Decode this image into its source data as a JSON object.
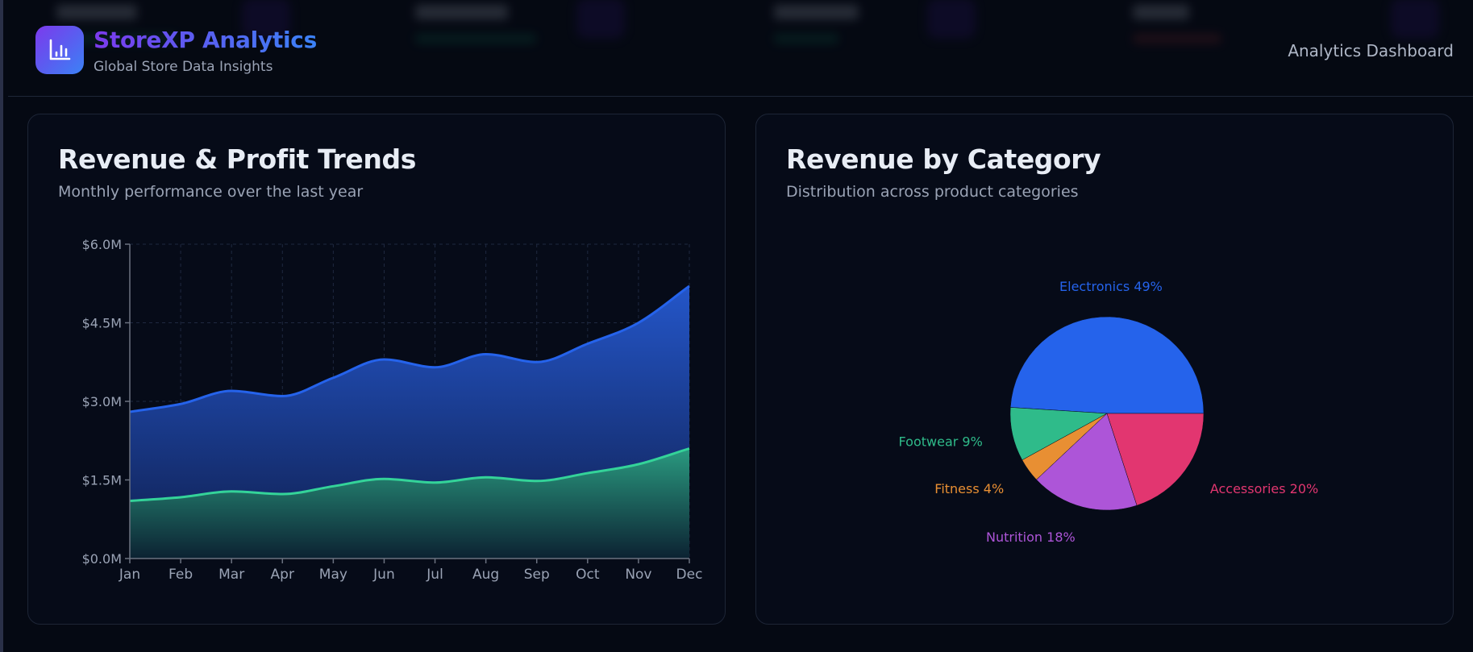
{
  "header": {
    "brand_title": "StoreXP Analytics",
    "brand_subtitle": "Global Store Data Insights",
    "logo_icon": "bar-chart-icon",
    "right_label": "Analytics Dashboard"
  },
  "stat_cards_blurred": [
    {
      "change_color": "#10b981"
    },
    {
      "change_color": "#10b981"
    },
    {
      "change_color": "#10b981"
    },
    {
      "change_color": "#ef4444"
    }
  ],
  "cards": {
    "trends": {
      "title": "Revenue & Profit Trends",
      "subtitle": "Monthly performance over the last year"
    },
    "category": {
      "title": "Revenue by Category",
      "subtitle": "Distribution across product categories"
    }
  },
  "colors": {
    "revenue": "#2563eb",
    "profit": "#34d399",
    "electronics": "#2563eb",
    "footwear": "#2fbb8a",
    "fitness": "#e88f33",
    "nutrition": "#ad55d8",
    "accessories": "#e23670"
  },
  "chart_data": [
    {
      "type": "area",
      "title": "Revenue & Profit Trends",
      "subtitle": "Monthly performance over the last year",
      "xlabel": "",
      "ylabel": "",
      "categories": [
        "Jan",
        "Feb",
        "Mar",
        "Apr",
        "May",
        "Jun",
        "Jul",
        "Aug",
        "Sep",
        "Oct",
        "Nov",
        "Dec"
      ],
      "series": [
        {
          "name": "Revenue",
          "values": [
            2.8,
            2.95,
            3.2,
            3.1,
            3.45,
            3.8,
            3.65,
            3.9,
            3.75,
            4.1,
            4.5,
            5.2
          ]
        },
        {
          "name": "Profit",
          "values": [
            1.1,
            1.17,
            1.28,
            1.23,
            1.38,
            1.52,
            1.45,
            1.55,
            1.48,
            1.63,
            1.8,
            2.1
          ]
        }
      ],
      "unit": "$M",
      "ylim": [
        0,
        6.0
      ],
      "yticks": [
        0,
        1.5,
        3.0,
        4.5,
        6.0
      ],
      "ytick_labels": [
        "$0.0M",
        "$1.5M",
        "$3.0M",
        "$4.5M",
        "$6.0M"
      ],
      "grid": true,
      "legend": "none"
    },
    {
      "type": "pie",
      "title": "Revenue by Category",
      "subtitle": "Distribution across product categories",
      "slices": [
        {
          "label": "Electronics",
          "value": 49,
          "label_text": "Electronics 49%"
        },
        {
          "label": "Footwear",
          "value": 9,
          "label_text": "Footwear 9%"
        },
        {
          "label": "Fitness",
          "value": 4,
          "label_text": "Fitness 4%"
        },
        {
          "label": "Nutrition",
          "value": 18,
          "label_text": "Nutrition 18%"
        },
        {
          "label": "Accessories",
          "value": 20,
          "label_text": "Accessories 20%"
        }
      ],
      "unit": "%",
      "legend": "none"
    }
  ]
}
